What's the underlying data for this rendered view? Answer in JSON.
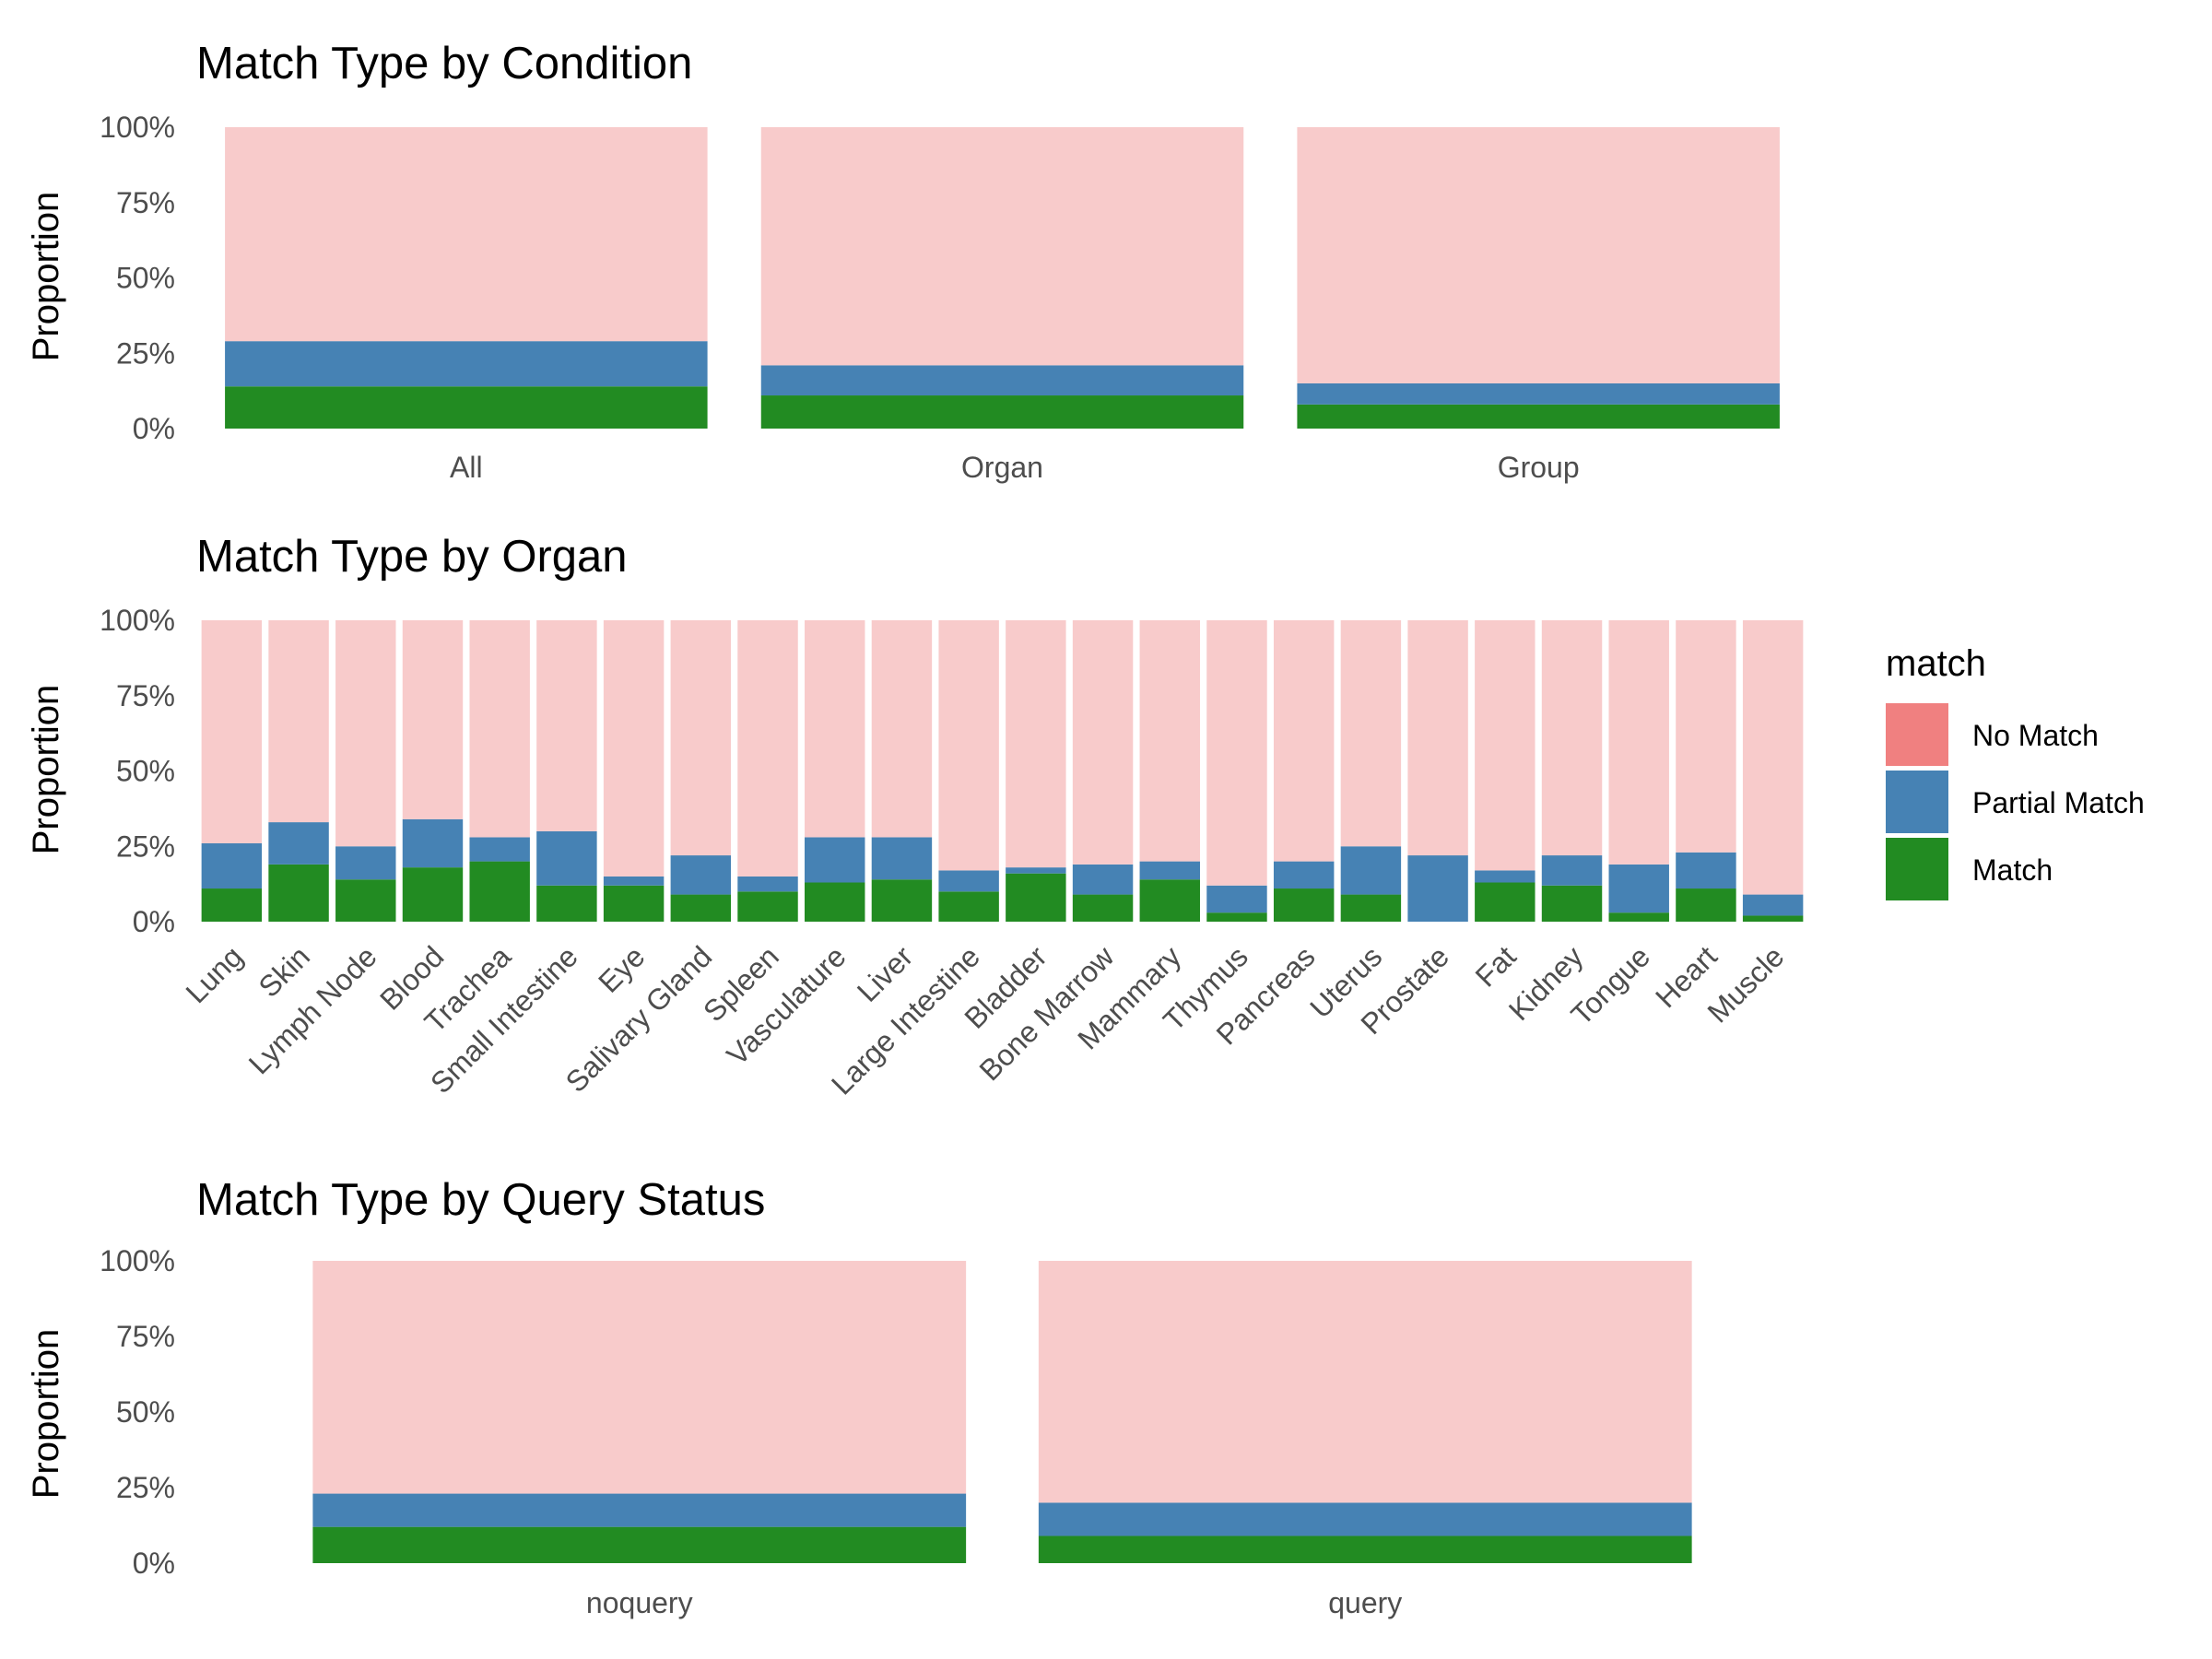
{
  "chart_data": [
    {
      "type": "bar",
      "stacked": "proportion",
      "title": "Match Type by Condition",
      "xlabel": "",
      "ylabel": "Proportion",
      "ylim": [
        0,
        1
      ],
      "y_ticks": [
        "0%",
        "25%",
        "50%",
        "75%",
        "100%"
      ],
      "categories": [
        "All",
        "Organ",
        "Group"
      ],
      "series": [
        {
          "name": "Match",
          "values": [
            0.14,
            0.11,
            0.08
          ]
        },
        {
          "name": "Partial Match",
          "values": [
            0.15,
            0.1,
            0.07
          ]
        },
        {
          "name": "No Match",
          "values": [
            0.71,
            0.79,
            0.85
          ]
        }
      ]
    },
    {
      "type": "bar",
      "stacked": "proportion",
      "title": "Match Type by Organ",
      "xlabel": "",
      "ylabel": "Proportion",
      "ylim": [
        0,
        1
      ],
      "y_ticks": [
        "0%",
        "25%",
        "50%",
        "75%",
        "100%"
      ],
      "x_tick_rotation": 45,
      "categories": [
        "Lung",
        "Skin",
        "Lymph Node",
        "Blood",
        "Trachea",
        "Small Intestine",
        "Eye",
        "Salivary Gland",
        "Spleen",
        "Vasculature",
        "Liver",
        "Large Intestine",
        "Bladder",
        "Bone Marrow",
        "Mammary",
        "Thymus",
        "Pancreas",
        "Uterus",
        "Prostate",
        "Fat",
        "Kidney",
        "Tongue",
        "Heart",
        "Muscle"
      ],
      "series": [
        {
          "name": "Match",
          "values": [
            0.11,
            0.19,
            0.14,
            0.18,
            0.2,
            0.12,
            0.12,
            0.09,
            0.1,
            0.13,
            0.14,
            0.1,
            0.16,
            0.09,
            0.14,
            0.03,
            0.11,
            0.09,
            0.0,
            0.13,
            0.12,
            0.03,
            0.11,
            0.02
          ]
        },
        {
          "name": "Partial Match",
          "values": [
            0.15,
            0.14,
            0.11,
            0.16,
            0.08,
            0.18,
            0.03,
            0.13,
            0.05,
            0.15,
            0.14,
            0.07,
            0.02,
            0.1,
            0.06,
            0.09,
            0.09,
            0.16,
            0.22,
            0.04,
            0.1,
            0.16,
            0.12,
            0.07
          ]
        },
        {
          "name": "No Match",
          "values": [
            0.74,
            0.67,
            0.75,
            0.66,
            0.72,
            0.7,
            0.85,
            0.78,
            0.85,
            0.72,
            0.72,
            0.83,
            0.82,
            0.81,
            0.8,
            0.88,
            0.8,
            0.75,
            0.78,
            0.83,
            0.78,
            0.81,
            0.77,
            0.91
          ]
        }
      ]
    },
    {
      "type": "bar",
      "stacked": "proportion",
      "title": "Match Type by Query Status",
      "xlabel": "",
      "ylabel": "Proportion",
      "ylim": [
        0,
        1
      ],
      "y_ticks": [
        "0%",
        "25%",
        "50%",
        "75%",
        "100%"
      ],
      "categories": [
        "noquery",
        "query"
      ],
      "series": [
        {
          "name": "Match",
          "values": [
            0.12,
            0.09
          ]
        },
        {
          "name": "Partial Match",
          "values": [
            0.11,
            0.11
          ]
        },
        {
          "name": "No Match",
          "values": [
            0.77,
            0.8
          ]
        }
      ]
    }
  ],
  "legend": {
    "title": "match",
    "placement": "right",
    "items": [
      {
        "label": "No Match",
        "color": "#F08080"
      },
      {
        "label": "Partial Match",
        "color": "#4682B4"
      },
      {
        "label": "Match",
        "color": "#228B22"
      }
    ]
  },
  "colors": {
    "No Match": "#F8CBCB",
    "Partial Match": "#4682B4",
    "Match": "#228B22"
  }
}
